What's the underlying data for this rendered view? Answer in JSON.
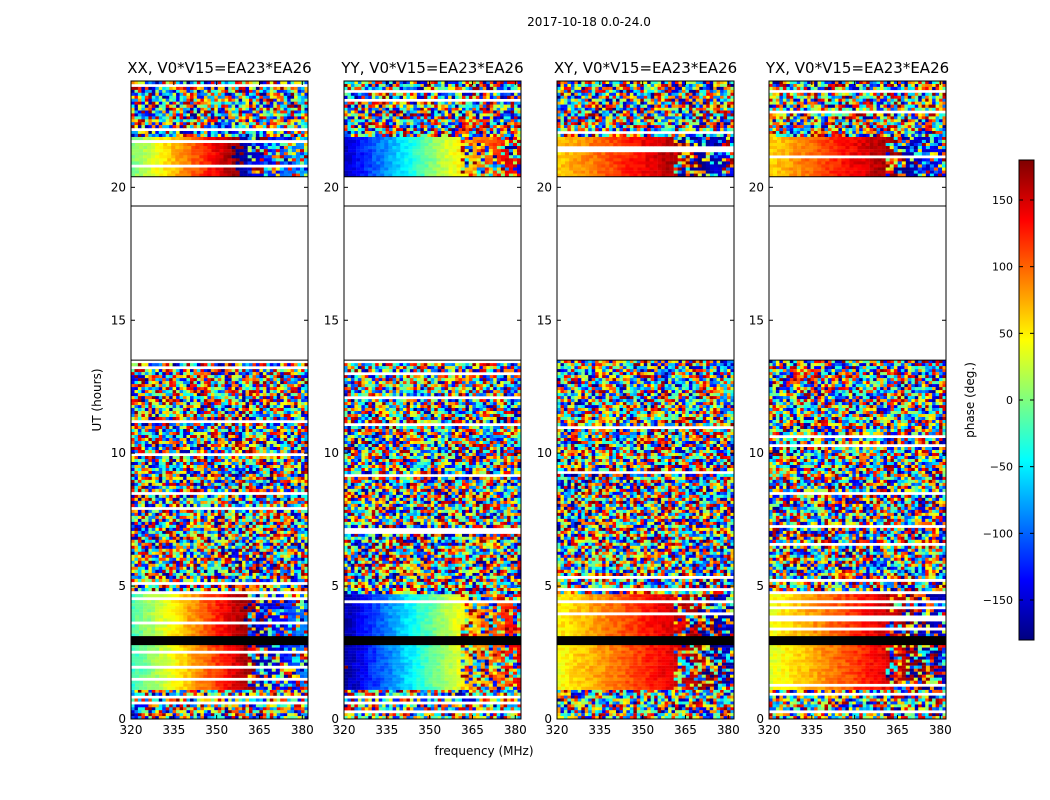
{
  "figure": {
    "suptitle": "2017-10-18 0.0-24.0",
    "xlabel": "frequency (MHz)",
    "ylabel": "UT (hours)"
  },
  "colorbar": {
    "label": "phase (deg.)",
    "ticks": [
      150,
      100,
      50,
      0,
      -50,
      -100,
      -150
    ],
    "range": [
      -180,
      180
    ],
    "colormap": [
      "#00007f",
      "#0000ff",
      "#007fff",
      "#00ffff",
      "#7fff7f",
      "#ffff00",
      "#ff7f00",
      "#ff0000",
      "#7f0000"
    ]
  },
  "chart_data": {
    "type": "heatmap",
    "x_range": [
      320,
      382
    ],
    "y_range": [
      0,
      24
    ],
    "x_ticks": [
      320,
      335,
      350,
      365,
      380
    ],
    "y_ticks": [
      0,
      5,
      10,
      15,
      20
    ],
    "panels": [
      {
        "title": "XX, V0*V15=EA23*EA26",
        "pattern": "xx"
      },
      {
        "title": "YY, V0*V15=EA23*EA26",
        "pattern": "yy"
      },
      {
        "title": "XY, V0*V15=EA23*EA26",
        "pattern": "xy"
      },
      {
        "title": "YX, V0*V15=EA23*EA26",
        "pattern": "yx"
      }
    ],
    "segments": [
      {
        "y0": 0.0,
        "y1": 1.1,
        "kind": "noise"
      },
      {
        "y0": 1.1,
        "y1": 2.8,
        "kind": "gradient"
      },
      {
        "y0": 2.8,
        "y1": 3.1,
        "kind": "gap"
      },
      {
        "y0": 3.1,
        "y1": 4.7,
        "kind": "gradient"
      },
      {
        "y0": 4.7,
        "y1": 5.5,
        "kind": "noise"
      },
      {
        "y0": 5.5,
        "y1": 13.5,
        "kind": "noise"
      },
      {
        "y0": 13.5,
        "y1": 19.3,
        "kind": "blank"
      },
      {
        "y0": 19.3,
        "y1": 20.4,
        "kind": "blank"
      },
      {
        "y0": 20.4,
        "y1": 21.9,
        "kind": "gradient"
      },
      {
        "y0": 21.9,
        "y1": 23.0,
        "kind": "noise"
      },
      {
        "y0": 23.0,
        "y1": 24.0,
        "kind": "noise"
      }
    ]
  }
}
